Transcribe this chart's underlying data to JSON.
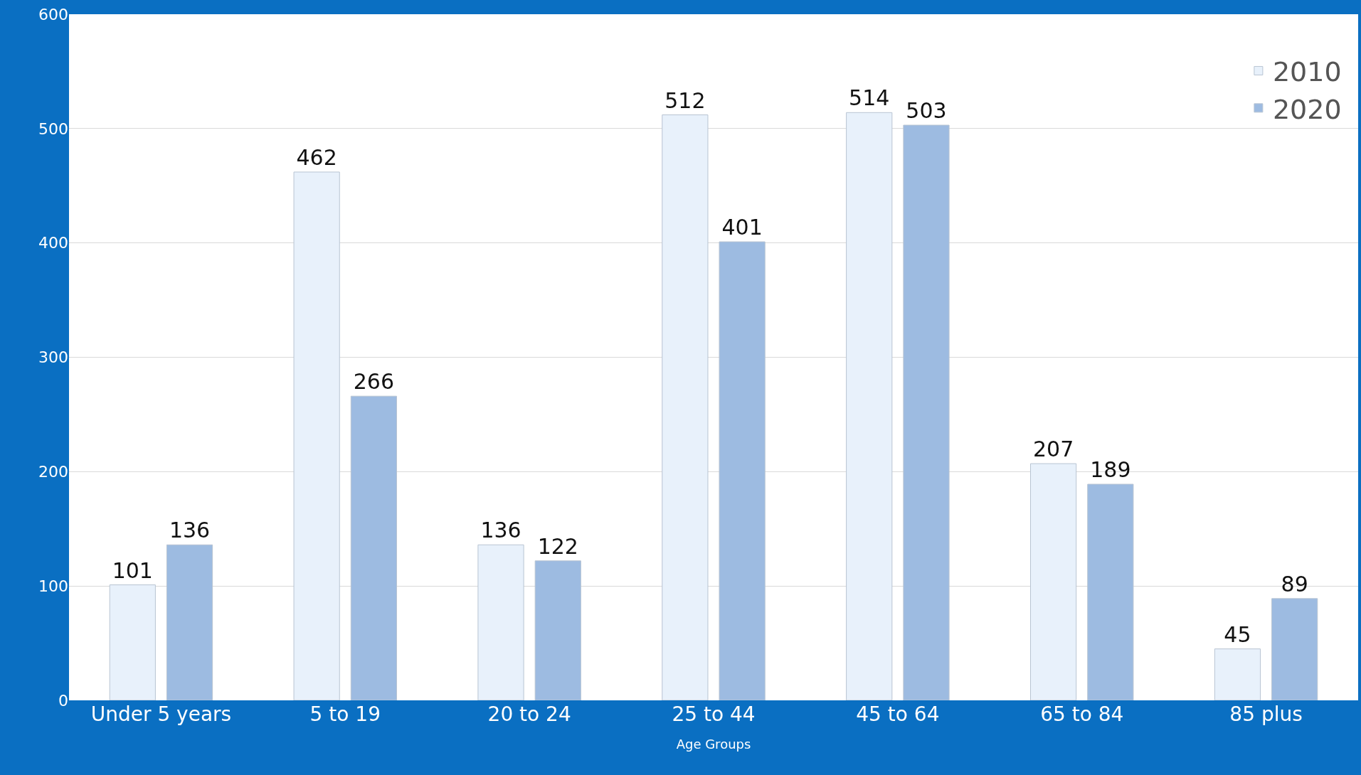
{
  "chart_data": {
    "type": "bar",
    "xlabel": "Age Groups",
    "categories": [
      "Under 5 years",
      "5 to 19",
      "20 to 24",
      "25 to 44",
      "45 to 64",
      "65 to 84",
      "85 plus"
    ],
    "series": [
      {
        "name": "2010",
        "color": "#e8f1fb",
        "values": [
          101,
          462,
          136,
          512,
          514,
          207,
          45
        ]
      },
      {
        "name": "2020",
        "color": "#9dbbe1",
        "values": [
          136,
          266,
          122,
          401,
          503,
          189,
          89
        ]
      }
    ],
    "ylim": [
      0,
      600
    ],
    "yticks": [
      0,
      100,
      200,
      300,
      400,
      500,
      600
    ],
    "grid": "y",
    "legend": "top right",
    "data_labels": true
  }
}
